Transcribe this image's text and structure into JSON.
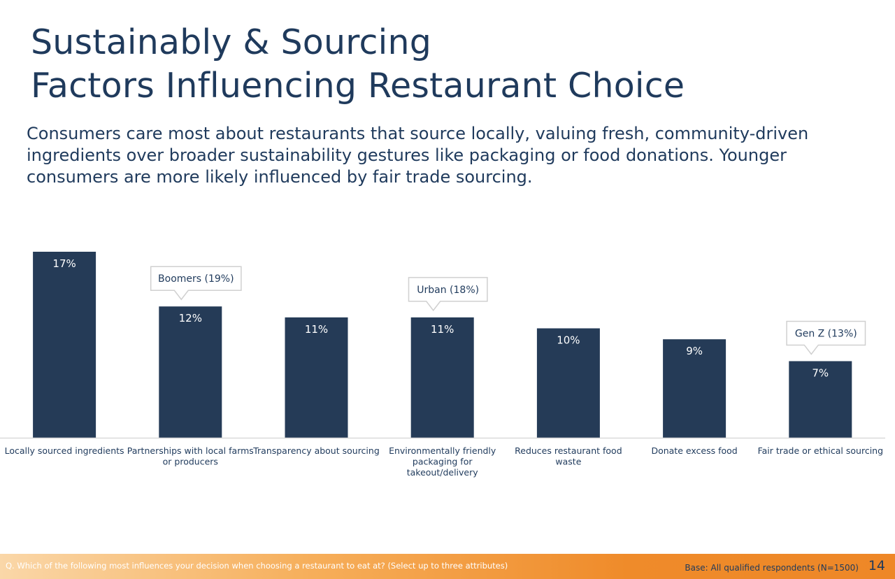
{
  "slide": {
    "title_line1": "Sustainably & Sourcing",
    "title_line2": "Factors Influencing Restaurant Choice",
    "subtitle": "Consumers care most about restaurants that source locally, valuing fresh, community-driven ingredients over broader sustainability gestures like packaging or food donations. Younger consumers are more likely influenced by fair trade sourcing."
  },
  "chart_data": {
    "type": "bar",
    "categories": [
      [
        "Locally sourced ingredients"
      ],
      [
        "Partnerships with local farms",
        "or producers"
      ],
      [
        "Transparency about sourcing"
      ],
      [
        "Environmentally friendly",
        "packaging for",
        "takeout/delivery"
      ],
      [
        "Reduces restaurant food",
        "waste"
      ],
      [
        "Donate excess food"
      ],
      [
        "Fair trade or ethical sourcing"
      ]
    ],
    "values": [
      17,
      12,
      11,
      11,
      10,
      9,
      7
    ],
    "value_labels": [
      "17%",
      "12%",
      "11%",
      "11%",
      "10%",
      "9%",
      "7%"
    ],
    "ylim": [
      0,
      17
    ],
    "bar_color": "#253b57",
    "callouts": [
      {
        "category_index": 1,
        "text": "Boomers (19%)"
      },
      {
        "category_index": 3,
        "text": "Urban (18%)"
      },
      {
        "category_index": 6,
        "text": "Gen Z (13%)"
      }
    ]
  },
  "footer": {
    "question": "Q. Which of the following most influences your decision when choosing a restaurant to eat at? (Select up to three attributes)",
    "base": "Base: All qualified respondents (N=1500)",
    "page": "14"
  }
}
